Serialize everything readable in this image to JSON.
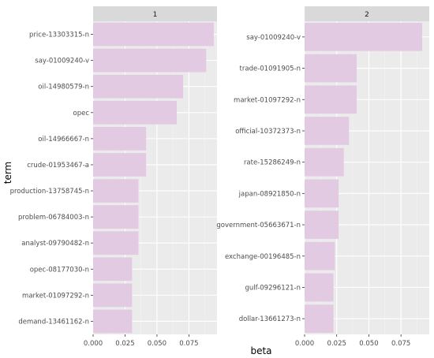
{
  "chart_data": {
    "type": "bar",
    "orientation": "horizontal",
    "grid": true,
    "xlabel": "beta",
    "ylabel": "term",
    "xlim": [
      0,
      0.097
    ],
    "xticks": [
      "0.000",
      "0.025",
      "0.050",
      "0.075"
    ],
    "bar_color": "#e3cae3",
    "panel_bg": "#ebebeb",
    "strip_bg": "#d9d9d9",
    "facets": [
      {
        "strip": "1",
        "categories": [
          "price-13303315-n",
          "say-01009240-v",
          "oil-14980579-n",
          "opec",
          "oil-14966667-n",
          "crude-01953467-a",
          "production-13758745-n",
          "problem-06784003-n",
          "analyst-09790482-n",
          "opec-08177030-n",
          "market-01097292-n",
          "demand-13461162-n"
        ],
        "values": [
          0.0945,
          0.0885,
          0.0705,
          0.0655,
          0.0415,
          0.0415,
          0.0355,
          0.0355,
          0.0355,
          0.0305,
          0.0305,
          0.0305
        ]
      },
      {
        "strip": "2",
        "categories": [
          "say-01009240-v",
          "trade-01091905-n",
          "market-01097292-n",
          "official-10372373-n",
          "rate-15286249-n",
          "japan-08921850-n",
          "government-05663671-n",
          "exchange-00196485-n",
          "gulf-09296121-n",
          "dollar-13661273-n"
        ],
        "values": [
          0.0915,
          0.0405,
          0.0405,
          0.0345,
          0.0305,
          0.0265,
          0.0265,
          0.0235,
          0.0225,
          0.0225
        ]
      }
    ]
  }
}
